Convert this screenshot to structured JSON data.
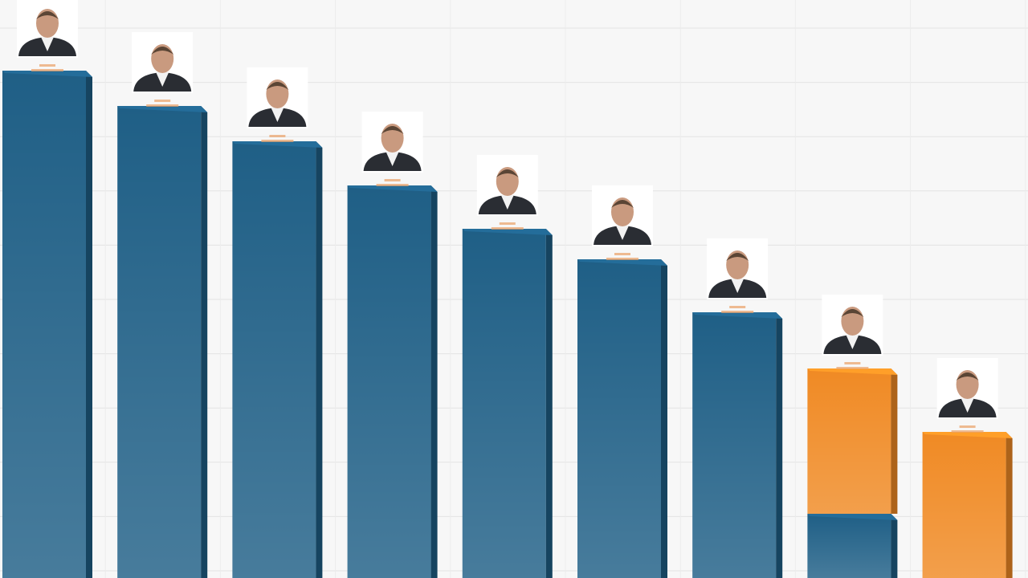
{
  "chart_data": {
    "type": "bar",
    "stacked": true,
    "grid": true,
    "series": [
      {
        "color": "#1f5f86",
        "values": [
          632,
          588,
          544,
          489,
          435,
          397,
          331,
          80,
          null
        ]
      },
      {
        "color": "#f08a24",
        "values": [
          null,
          null,
          null,
          null,
          null,
          null,
          null,
          181,
          182
        ]
      }
    ]
  }
}
